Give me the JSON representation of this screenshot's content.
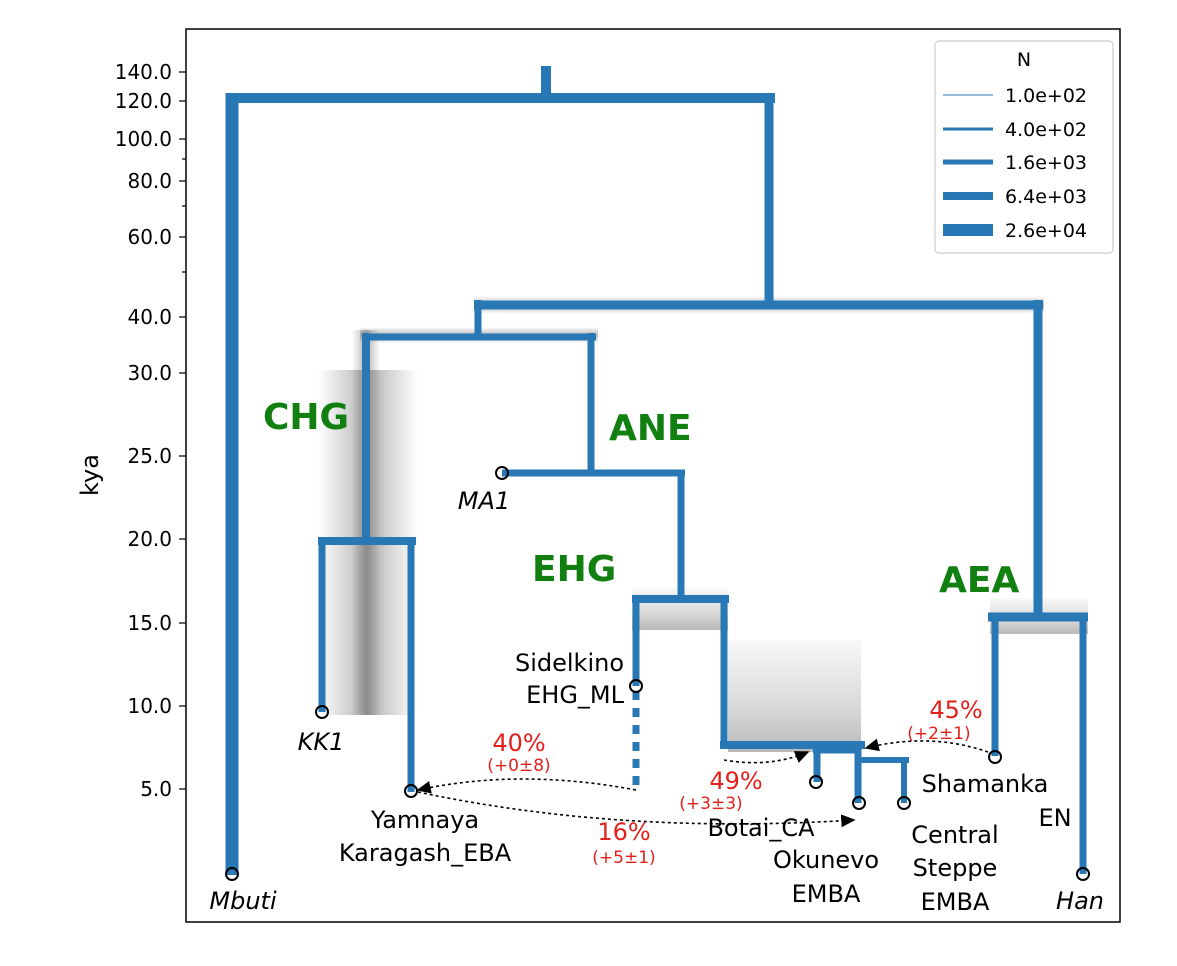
{
  "colors": {
    "branch": "#2878b5",
    "clade": "#118011",
    "admixture_text": "#e3201b",
    "uncertainty": "#808080",
    "admixture_arrow": "#000000"
  },
  "axis": {
    "ylabel": "kya",
    "ticks": [
      "140.0",
      "120.0",
      "100.0",
      "80.0",
      "60.0",
      "40.0",
      "30.0",
      "25.0",
      "20.0",
      "15.0",
      "10.0",
      "5.0"
    ]
  },
  "legend": {
    "title": "N",
    "entries": [
      "1.0e+02",
      "4.0e+02",
      "1.6e+03",
      "6.4e+03",
      "2.6e+04"
    ]
  },
  "clades": {
    "chg": "CHG",
    "ane": "ANE",
    "ehg": "EHG",
    "aea": "AEA"
  },
  "leaves": {
    "mbuti": "Mbuti",
    "kk1": "KK1",
    "yamnaya_1": "Yamnaya",
    "yamnaya_2": "Karagash_EBA",
    "ma1": "MA1",
    "sidelkino_1": "Sidelkino",
    "sidelkino_2": "EHG_ML",
    "botai": "Botai_CA",
    "okunevo_1": "Okunevo",
    "okunevo_2": "EMBA",
    "central_1": "Central",
    "central_2": "Steppe",
    "central_3": "EMBA",
    "shamanka_1": "Shamanka",
    "shamanka_2": "EN",
    "han": "Han"
  },
  "admixture": {
    "a40": {
      "pct": "40%",
      "sub": "(+0±8)"
    },
    "a16": {
      "pct": "16%",
      "sub": "(+5±1)"
    },
    "a49": {
      "pct": "49%",
      "sub": "(+3±3)"
    },
    "a45": {
      "pct": "45%",
      "sub": "(+2±1)"
    }
  }
}
